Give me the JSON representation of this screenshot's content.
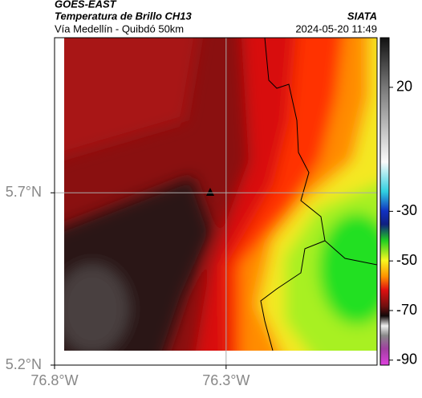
{
  "header": {
    "title": "GOES-EAST",
    "subtitle": "Temperatura de Brillo CH13",
    "source": "SIATA",
    "region": "Vía Medellín - Quibdó 50km",
    "timestamp": "2024-05-20 11:49"
  },
  "map": {
    "xlim": [
      -76.8,
      -75.86
    ],
    "ylim": [
      5.2,
      6.15
    ],
    "xticks": [
      {
        "value": -76.8,
        "label": "76.8°W"
      },
      {
        "value": -76.3,
        "label": "76.3°W"
      }
    ],
    "yticks": [
      {
        "value": 5.2,
        "label": "5.2°N"
      },
      {
        "value": 5.7,
        "label": "5.7°N"
      }
    ],
    "grid": true
  },
  "colorbar": {
    "lim": [
      -92,
      40
    ],
    "ticks": [
      20,
      -30,
      -50,
      -70,
      -90
    ]
  }
}
